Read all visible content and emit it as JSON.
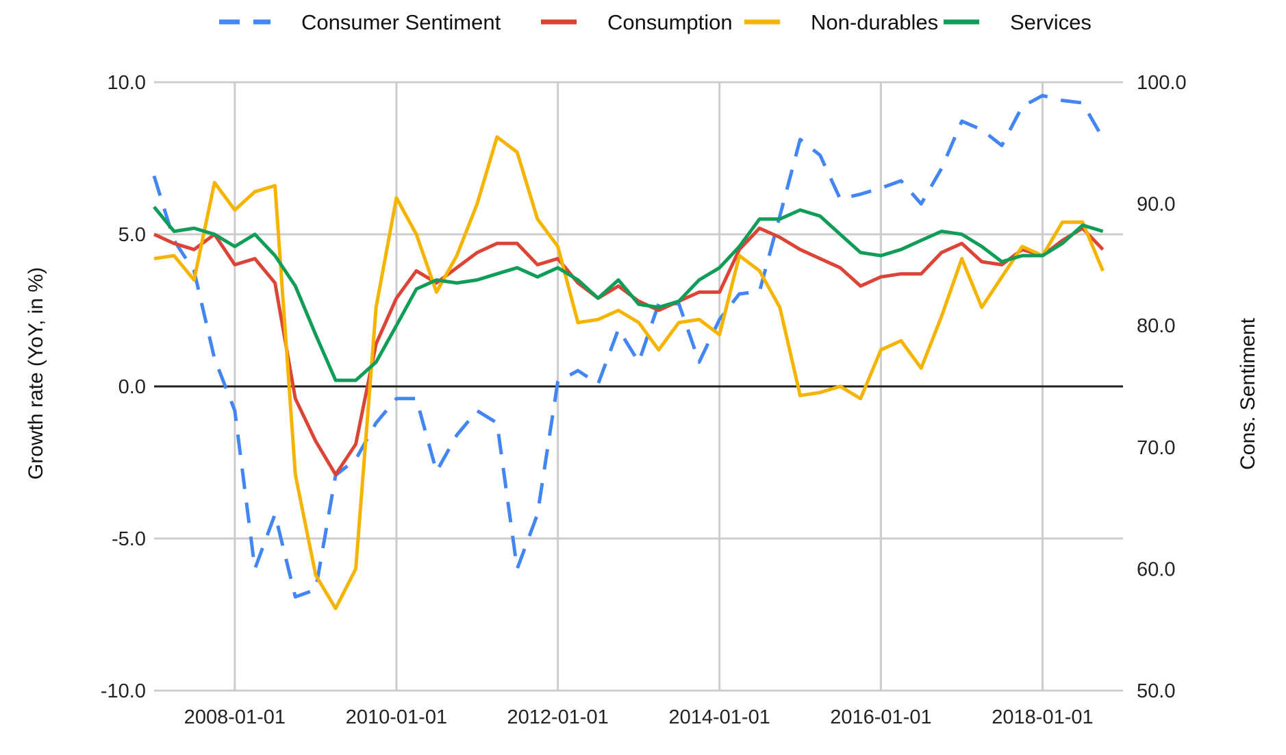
{
  "chart_data": {
    "type": "line",
    "xlabel": "",
    "ylabel": "Growth rate (YoY, in %)",
    "y2label": "Cons. Sentiment",
    "ylim": [
      -10,
      10
    ],
    "y2lim": [
      50,
      100
    ],
    "xlim": [
      "2007-01-01",
      "2018-12-31"
    ],
    "x_ticks": [
      "2008-01-01",
      "2010-01-01",
      "2012-01-01",
      "2014-01-01",
      "2016-01-01",
      "2018-01-01"
    ],
    "y_ticks": [
      "-10.0",
      "-5.0",
      "0.0",
      "5.0",
      "10.0"
    ],
    "y2_ticks": [
      "50.0",
      "60.0",
      "70.0",
      "80.0",
      "90.0",
      "100.0"
    ],
    "grid": true,
    "legend_position": "top-center",
    "x": [
      "2007-01-01",
      "2007-04-01",
      "2007-07-01",
      "2007-10-01",
      "2008-01-01",
      "2008-04-01",
      "2008-07-01",
      "2008-10-01",
      "2009-01-01",
      "2009-04-01",
      "2009-07-01",
      "2009-10-01",
      "2010-01-01",
      "2010-04-01",
      "2010-07-01",
      "2010-10-01",
      "2011-01-01",
      "2011-04-01",
      "2011-07-01",
      "2011-10-01",
      "2012-01-01",
      "2012-04-01",
      "2012-07-01",
      "2012-10-01",
      "2013-01-01",
      "2013-04-01",
      "2013-07-01",
      "2013-10-01",
      "2014-01-01",
      "2014-04-01",
      "2014-07-01",
      "2014-10-01",
      "2015-01-01",
      "2015-04-01",
      "2015-07-01",
      "2015-10-01",
      "2016-01-01",
      "2016-04-01",
      "2016-07-01",
      "2016-10-01",
      "2017-01-01",
      "2017-04-01",
      "2017-07-01",
      "2017-10-01",
      "2018-01-01",
      "2018-04-01",
      "2018-07-01",
      "2018-10-01"
    ],
    "series": [
      {
        "name": "Consumer Sentiment",
        "axis": "right",
        "color": "#4285f4",
        "dash": true,
        "values": [
          92.3,
          87.0,
          84.5,
          77.3,
          73.0,
          60.0,
          64.5,
          57.7,
          58.3,
          67.7,
          69.0,
          72.0,
          74.0,
          74.0,
          68.0,
          71.0,
          73.0,
          72.0,
          60.0,
          64.5,
          75.4,
          76.3,
          75.2,
          79.7,
          77.0,
          81.8,
          81.8,
          77.0,
          80.5,
          82.6,
          82.8,
          89.0,
          95.3,
          94.0,
          90.4,
          90.8,
          91.3,
          91.9,
          90.0,
          92.9,
          96.8,
          96.1,
          94.8,
          98.0,
          98.9,
          98.5,
          98.3,
          95.4
        ]
      },
      {
        "name": "Consumption",
        "axis": "left",
        "color": "#db4437",
        "dash": false,
        "values": [
          5.0,
          4.7,
          4.5,
          5.0,
          4.0,
          4.2,
          3.4,
          -0.4,
          -1.8,
          -2.9,
          -1.9,
          1.4,
          2.9,
          3.8,
          3.4,
          3.9,
          4.4,
          4.7,
          4.7,
          4.0,
          4.2,
          3.4,
          2.9,
          3.3,
          2.8,
          2.5,
          2.8,
          3.1,
          3.1,
          4.5,
          5.2,
          4.9,
          4.5,
          4.2,
          3.9,
          3.3,
          3.6,
          3.7,
          3.7,
          4.4,
          4.7,
          4.1,
          4.0,
          4.5,
          4.3,
          4.8,
          5.2,
          4.5
        ]
      },
      {
        "name": "Non-durables",
        "axis": "left",
        "color": "#f4b400",
        "dash": false,
        "values": [
          4.2,
          4.3,
          3.5,
          6.7,
          5.8,
          6.4,
          6.6,
          -2.9,
          -6.2,
          -7.3,
          -6.0,
          2.6,
          6.2,
          5.0,
          3.1,
          4.3,
          6.0,
          8.2,
          7.7,
          5.5,
          4.6,
          2.1,
          2.2,
          2.5,
          2.1,
          1.2,
          2.1,
          2.2,
          1.7,
          4.3,
          3.8,
          2.6,
          -0.3,
          -0.2,
          0.0,
          -0.4,
          1.2,
          1.5,
          0.6,
          2.3,
          4.2,
          2.6,
          3.6,
          4.6,
          4.3,
          5.4,
          5.4,
          3.8
        ]
      },
      {
        "name": "Services",
        "axis": "left",
        "color": "#0f9d58",
        "dash": false,
        "values": [
          5.9,
          5.1,
          5.2,
          5.0,
          4.6,
          5.0,
          4.3,
          3.3,
          1.7,
          0.2,
          0.2,
          0.8,
          2.0,
          3.2,
          3.5,
          3.4,
          3.5,
          3.7,
          3.9,
          3.6,
          3.9,
          3.5,
          2.9,
          3.5,
          2.7,
          2.6,
          2.8,
          3.5,
          3.9,
          4.6,
          5.5,
          5.5,
          5.8,
          5.6,
          5.0,
          4.4,
          4.3,
          4.5,
          4.8,
          5.1,
          5.0,
          4.6,
          4.1,
          4.3,
          4.3,
          4.7,
          5.3,
          5.1
        ]
      }
    ]
  }
}
